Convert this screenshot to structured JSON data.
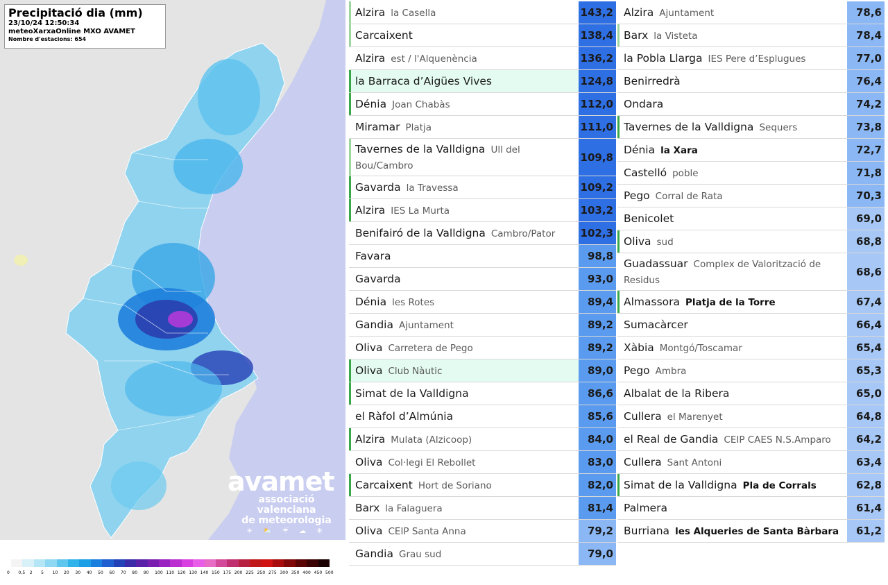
{
  "map": {
    "title": "Precipitació dia (mm)",
    "datetime": "23/10/24 12:50:34",
    "source": "meteoXarxaOnline MXO AVAMET",
    "stations_count": "Nombre d'estacions: 654",
    "logo": {
      "name": "avamet",
      "line1": "associació valenciana",
      "line2": "de meteorologia",
      "icons": "☀ ⛅ ☔ ☁ ❄"
    },
    "legend_labels": [
      "0",
      "0,5",
      "2",
      "5",
      "10",
      "20",
      "30",
      "40",
      "50",
      "60",
      "70",
      "80",
      "90",
      "100",
      "110",
      "120",
      "130",
      "140",
      "150",
      "175",
      "200",
      "225",
      "250",
      "275",
      "300",
      "350",
      "400",
      "450",
      "500"
    ],
    "legend_colors": [
      "#f4f4f4",
      "#d8f0f8",
      "#b5e6f6",
      "#8fd8f3",
      "#5fc6ee",
      "#2fb3ea",
      "#1a9ee6",
      "#1a80e0",
      "#1f5fd0",
      "#2442b8",
      "#3a2aa8",
      "#5a21a8",
      "#7a1eb0",
      "#9a22c0",
      "#bb2ed0",
      "#d840e0",
      "#e85ee6",
      "#e66cc6",
      "#d44a9a",
      "#c03070",
      "#b82242",
      "#c01818",
      "#d01212",
      "#a80c0c",
      "#800808",
      "#5a0404",
      "#3a0202",
      "#1a0000"
    ],
    "value_scale_colors": {
      "very_high": "#2f6fe4",
      "high": "#5b9bef",
      "mid": "#8bb8f4",
      "low": "#a7c8f6"
    }
  },
  "table_left": [
    {
      "town": "Alzira",
      "station": "la Casella",
      "station_bold": false,
      "value": "143,2",
      "bar": "lg",
      "hl": false,
      "level": "very_high"
    },
    {
      "town": "Carcaixent",
      "station": "",
      "station_bold": false,
      "value": "138,4",
      "bar": "lg",
      "hl": false,
      "level": "very_high"
    },
    {
      "town": "Alzira",
      "station": "est / l'Alquenència",
      "station_bold": false,
      "value": "136,2",
      "bar": "",
      "hl": false,
      "level": "very_high"
    },
    {
      "town": "la Barraca d’Aigües Vives",
      "station": "",
      "station_bold": false,
      "value": "124,8",
      "bar": "g",
      "hl": true,
      "level": "very_high"
    },
    {
      "town": "Dénia",
      "station": "Joan Chabàs",
      "station_bold": false,
      "value": "112,0",
      "bar": "g",
      "hl": false,
      "level": "very_high"
    },
    {
      "town": "Miramar",
      "station": "Platja",
      "station_bold": false,
      "value": "111,0",
      "bar": "",
      "hl": false,
      "level": "very_high"
    },
    {
      "town": "Tavernes de la Valldigna",
      "station": "Ull del Bou/Cambro",
      "station_bold": false,
      "value": "109,8",
      "bar": "lg",
      "hl": false,
      "level": "very_high",
      "two_line": true
    },
    {
      "town": "Gavarda",
      "station": "la Travessa",
      "station_bold": false,
      "value": "109,2",
      "bar": "g",
      "hl": false,
      "level": "very_high"
    },
    {
      "town": "Alzira",
      "station": "IES La Murta",
      "station_bold": false,
      "value": "103,2",
      "bar": "g",
      "hl": false,
      "level": "very_high"
    },
    {
      "town": "Benifairó de la Valldigna",
      "station": "Cambro/Pator",
      "station_bold": false,
      "value": "102,3",
      "bar": "",
      "hl": false,
      "level": "very_high"
    },
    {
      "town": "Favara",
      "station": "",
      "station_bold": false,
      "value": "98,8",
      "bar": "",
      "hl": false,
      "level": "high"
    },
    {
      "town": "Gavarda",
      "station": "",
      "station_bold": false,
      "value": "93,0",
      "bar": "",
      "hl": false,
      "level": "high"
    },
    {
      "town": "Dénia",
      "station": "les Rotes",
      "station_bold": false,
      "value": "89,4",
      "bar": "",
      "hl": false,
      "level": "high"
    },
    {
      "town": "Gandia",
      "station": "Ajuntament",
      "station_bold": false,
      "value": "89,2",
      "bar": "",
      "hl": false,
      "level": "high"
    },
    {
      "town": "Oliva",
      "station": "Carretera de Pego",
      "station_bold": false,
      "value": "89,2",
      "bar": "",
      "hl": false,
      "level": "high"
    },
    {
      "town": "Oliva",
      "station": "Club Nàutic",
      "station_bold": false,
      "value": "89,0",
      "bar": "g",
      "hl": true,
      "level": "high"
    },
    {
      "town": "Simat de la Valldigna",
      "station": "",
      "station_bold": false,
      "value": "86,6",
      "bar": "g",
      "hl": false,
      "level": "high"
    },
    {
      "town": "el Ràfol d’Almúnia",
      "station": "",
      "station_bold": false,
      "value": "85,6",
      "bar": "",
      "hl": false,
      "level": "high"
    },
    {
      "town": "Alzira",
      "station": "Mulata (Alzicoop)",
      "station_bold": false,
      "value": "84,0",
      "bar": "g",
      "hl": false,
      "level": "high"
    },
    {
      "town": "Oliva",
      "station": "Col·legi El Rebollet",
      "station_bold": false,
      "value": "83,0",
      "bar": "",
      "hl": false,
      "level": "high"
    },
    {
      "town": "Carcaixent",
      "station": "Hort de Soriano",
      "station_bold": false,
      "value": "82,0",
      "bar": "g",
      "hl": false,
      "level": "high"
    },
    {
      "town": "Barx",
      "station": "la Falaguera",
      "station_bold": false,
      "value": "81,4",
      "bar": "",
      "hl": false,
      "level": "high"
    },
    {
      "town": "Oliva",
      "station": "CEIP Santa Anna",
      "station_bold": false,
      "value": "79,2",
      "bar": "",
      "hl": false,
      "level": "mid"
    },
    {
      "town": "Gandia",
      "station": "Grau sud",
      "station_bold": false,
      "value": "79,0",
      "bar": "",
      "hl": false,
      "level": "mid"
    }
  ],
  "table_right": [
    {
      "town": "Alzira",
      "station": "Ajuntament",
      "station_bold": false,
      "value": "78,6",
      "bar": "",
      "hl": false,
      "level": "mid"
    },
    {
      "town": "Barx",
      "station": "la Visteta",
      "station_bold": false,
      "value": "78,4",
      "bar": "lg",
      "hl": false,
      "level": "mid"
    },
    {
      "town": "la Pobla Llarga",
      "station": "IES Pere d’Esplugues",
      "station_bold": false,
      "value": "77,0",
      "bar": "",
      "hl": false,
      "level": "mid"
    },
    {
      "town": "Benirredrà",
      "station": "",
      "station_bold": false,
      "value": "76,4",
      "bar": "",
      "hl": false,
      "level": "mid"
    },
    {
      "town": "Ondara",
      "station": "",
      "station_bold": false,
      "value": "74,2",
      "bar": "",
      "hl": false,
      "level": "mid"
    },
    {
      "town": "Tavernes de la Valldigna",
      "station": "Sequers",
      "station_bold": false,
      "value": "73,8",
      "bar": "g",
      "hl": false,
      "level": "mid"
    },
    {
      "town": "Dénia",
      "station": "la Xara",
      "station_bold": true,
      "value": "72,7",
      "bar": "",
      "hl": false,
      "level": "mid"
    },
    {
      "town": "Castelló",
      "station": "poble",
      "station_bold": false,
      "value": "71,8",
      "bar": "",
      "hl": false,
      "level": "mid"
    },
    {
      "town": "Pego",
      "station": "Corral de Rata",
      "station_bold": false,
      "value": "70,3",
      "bar": "",
      "hl": false,
      "level": "mid"
    },
    {
      "town": "Benicolet",
      "station": "",
      "station_bold": false,
      "value": "69,0",
      "bar": "",
      "hl": false,
      "level": "low"
    },
    {
      "town": "Oliva",
      "station": "sud",
      "station_bold": false,
      "value": "68,8",
      "bar": "g",
      "hl": false,
      "level": "low"
    },
    {
      "town": "Guadassuar",
      "station": "Complex de Valorització de Residus",
      "station_bold": false,
      "value": "68,6",
      "bar": "",
      "hl": false,
      "level": "low",
      "two_line": true
    },
    {
      "town": "Almassora",
      "station": "Platja de la Torre",
      "station_bold": true,
      "value": "67,4",
      "bar": "g",
      "hl": false,
      "level": "low"
    },
    {
      "town": "Sumacàrcer",
      "station": "",
      "station_bold": false,
      "value": "66,4",
      "bar": "",
      "hl": false,
      "level": "low"
    },
    {
      "town": "Xàbia",
      "station": "Montgó/Toscamar",
      "station_bold": false,
      "value": "65,4",
      "bar": "",
      "hl": false,
      "level": "low"
    },
    {
      "town": "Pego",
      "station": "Ambra",
      "station_bold": false,
      "value": "65,3",
      "bar": "",
      "hl": false,
      "level": "low"
    },
    {
      "town": "Albalat de la Ribera",
      "station": "",
      "station_bold": false,
      "value": "65,0",
      "bar": "",
      "hl": false,
      "level": "low"
    },
    {
      "town": "Cullera",
      "station": "el Marenyet",
      "station_bold": false,
      "value": "64,8",
      "bar": "",
      "hl": false,
      "level": "low"
    },
    {
      "town": "el Real de Gandia",
      "station": "CEIP CAES N.S.Amparo",
      "station_bold": false,
      "value": "64,2",
      "bar": "",
      "hl": false,
      "level": "low"
    },
    {
      "town": "Cullera",
      "station": "Sant Antoni",
      "station_bold": false,
      "value": "63,4",
      "bar": "",
      "hl": false,
      "level": "low"
    },
    {
      "town": "Simat de la Valldigna",
      "station": "Pla de Corrals",
      "station_bold": true,
      "value": "62,8",
      "bar": "g",
      "hl": false,
      "level": "low"
    },
    {
      "town": "Palmera",
      "station": "",
      "station_bold": false,
      "value": "61,4",
      "bar": "",
      "hl": false,
      "level": "low"
    },
    {
      "town": "Burriana",
      "station": "les Alqueries de Santa Bàrbara",
      "station_bold": true,
      "value": "61,2",
      "bar": "",
      "hl": false,
      "level": "low"
    }
  ]
}
